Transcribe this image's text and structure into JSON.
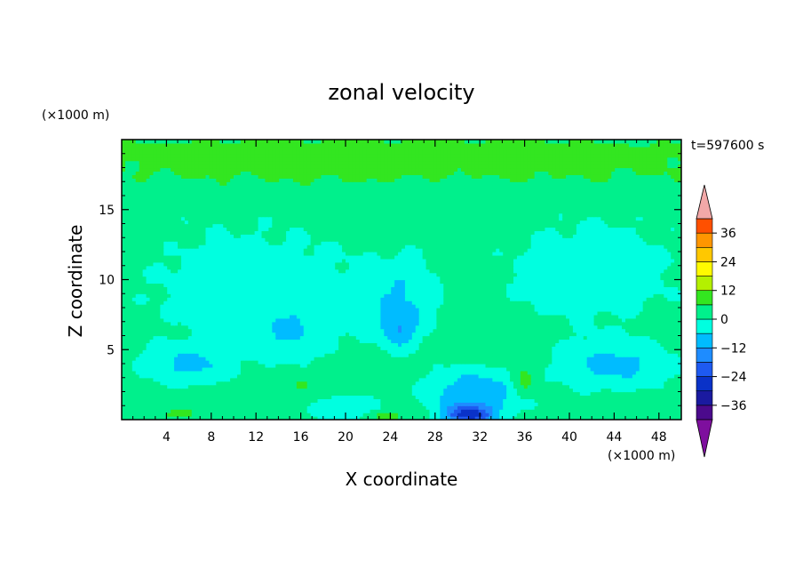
{
  "chart_data": {
    "type": "heatmap",
    "title": "zonal velocity",
    "xlabel": "X coordinate",
    "ylabel": "Z coordinate",
    "x_unit": "(×1000 m)",
    "y_unit": "(×1000 m)",
    "time_label": "t=597600 s",
    "xlim": [
      0,
      50
    ],
    "ylim": [
      0,
      20
    ],
    "x_ticks": [
      4,
      8,
      12,
      16,
      20,
      24,
      28,
      32,
      36,
      40,
      44,
      48
    ],
    "y_ticks": [
      5,
      10,
      15
    ],
    "grid": false,
    "colorbar": {
      "ticks": [
        36,
        24,
        12,
        0,
        -12,
        -24,
        -36
      ],
      "levels": [
        -42,
        -36,
        -30,
        -24,
        -18,
        -12,
        -6,
        0,
        6,
        12,
        18,
        24,
        30,
        36,
        42
      ],
      "colors": [
        "#4b0a8c",
        "#1a1aa0",
        "#0a32c8",
        "#1e5af0",
        "#1e8cff",
        "#00bcff",
        "#00ffe0",
        "#00f08c",
        "#33e620",
        "#b4f000",
        "#fffa00",
        "#ffc800",
        "#ff9600",
        "#ff5000",
        "#f01414"
      ],
      "under_color": "#7e0f9e",
      "over_color": "#f2a8a8"
    },
    "field_description": "Background ~0 to +6 (green) across the domain; yellow-green band (6 to 12) above z=15 km; green shear layer at z~15 km; light-green plume (0..6) from z~15 to z~4 km at x~27-30 km; cyan cells (-6 to -12) at low levels; deep blue core (~-30) near x=31 km at the surface.",
    "field_blobs": [
      {
        "cx": 25,
        "cy": 18.3,
        "rx": 40,
        "ry": 1.8,
        "value": 8
      },
      {
        "cx": 20,
        "cy": 19.2,
        "rx": 30,
        "ry": 0.6,
        "value": 10
      },
      {
        "cx": 35,
        "cy": 16.1,
        "rx": 18,
        "ry": 0.6,
        "value": 2
      },
      {
        "cx": 8,
        "cy": 14.2,
        "rx": 10,
        "ry": 1.1,
        "value": 2
      },
      {
        "cx": 44,
        "cy": 14.0,
        "rx": 10,
        "ry": 1.0,
        "value": 2
      },
      {
        "cx": 29,
        "cy": 15.6,
        "rx": 5,
        "ry": 1.4,
        "value": 4
      },
      {
        "cx": 29,
        "cy": 10.0,
        "rx": 1.8,
        "ry": 5.3,
        "value": 4
      },
      {
        "cx": 12,
        "cy": 9.5,
        "rx": 10,
        "ry": 4.0,
        "value": -4
      },
      {
        "cx": 42,
        "cy": 10.5,
        "rx": 8,
        "ry": 3.5,
        "value": -4
      },
      {
        "cx": 25,
        "cy": 8.5,
        "rx": 3.5,
        "ry": 3.0,
        "value": -7
      },
      {
        "cx": 15,
        "cy": 6.5,
        "rx": 4,
        "ry": 2.0,
        "value": -7
      },
      {
        "cx": 24.7,
        "cy": 6.6,
        "rx": 1.4,
        "ry": 1.2,
        "value": -13
      },
      {
        "cx": 6,
        "cy": 4.0,
        "rx": 4,
        "ry": 1.4,
        "value": -8
      },
      {
        "cx": 44,
        "cy": 4.0,
        "rx": 5,
        "ry": 1.8,
        "value": -8
      },
      {
        "cx": 20,
        "cy": 0.8,
        "rx": 3,
        "ry": 0.8,
        "value": -7
      },
      {
        "cx": 31.5,
        "cy": 1.8,
        "rx": 4,
        "ry": 1.8,
        "value": -12
      },
      {
        "cx": 31,
        "cy": 0.4,
        "rx": 2,
        "ry": 0.6,
        "value": -30
      },
      {
        "cx": 5,
        "cy": 0.4,
        "rx": 3,
        "ry": 0.5,
        "value": 7
      },
      {
        "cx": 24,
        "cy": 0.3,
        "rx": 2,
        "ry": 0.4,
        "value": 8
      },
      {
        "cx": 16,
        "cy": 2.5,
        "rx": 1,
        "ry": 0.5,
        "value": 7
      },
      {
        "cx": 36,
        "cy": 3.0,
        "rx": 1,
        "ry": 1.2,
        "value": 7
      }
    ]
  }
}
